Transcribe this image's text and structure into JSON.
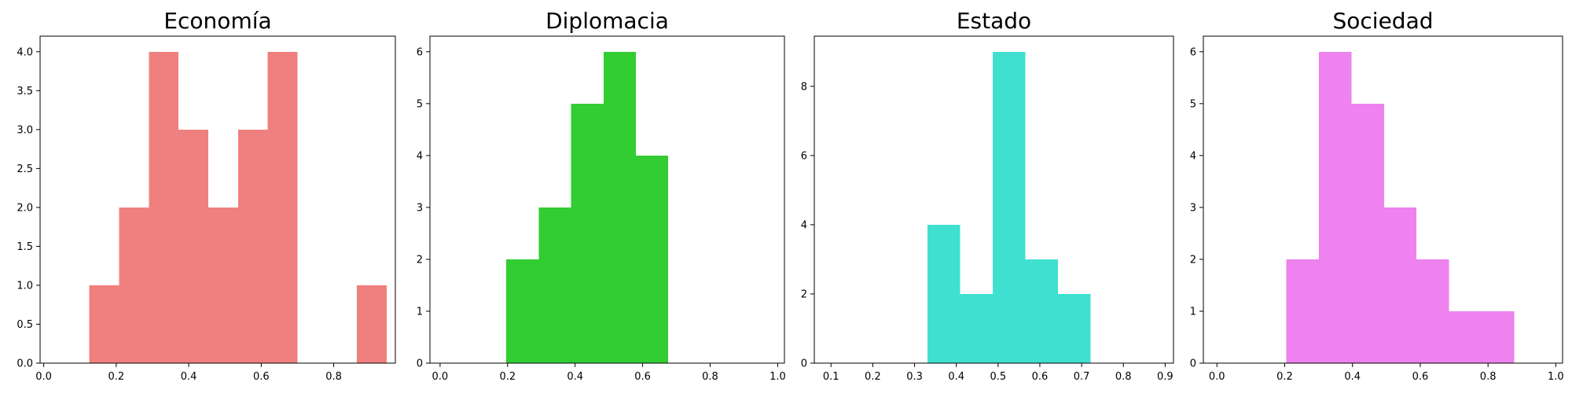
{
  "chart_data": [
    {
      "type": "bar",
      "title": "Economía",
      "color": "#f08080",
      "bins": [
        [
          0.126,
          0.208
        ],
        [
          0.208,
          0.29
        ],
        [
          0.29,
          0.372
        ],
        [
          0.372,
          0.454
        ],
        [
          0.454,
          0.536
        ],
        [
          0.536,
          0.618
        ],
        [
          0.618,
          0.7
        ],
        [
          0.7,
          0.782
        ],
        [
          0.782,
          0.864
        ],
        [
          0.864,
          0.946
        ]
      ],
      "values": [
        1,
        2,
        4,
        3,
        2,
        3,
        4,
        0,
        0,
        1
      ],
      "xlim": [
        -0.01,
        0.97
      ],
      "ylim": [
        0,
        4.2
      ],
      "xticks": [
        {
          "v": 0.0,
          "label": "0.0"
        },
        {
          "v": 0.2,
          "label": "0.2"
        },
        {
          "v": 0.4,
          "label": "0.4"
        },
        {
          "v": 0.6,
          "label": "0.6"
        },
        {
          "v": 0.8,
          "label": "0.8"
        }
      ],
      "yticks": [
        {
          "v": 0.0,
          "label": "0.0"
        },
        {
          "v": 0.5,
          "label": "0.5"
        },
        {
          "v": 1.0,
          "label": "1.0"
        },
        {
          "v": 1.5,
          "label": "1.5"
        },
        {
          "v": 2.0,
          "label": "2.0"
        },
        {
          "v": 2.5,
          "label": "2.5"
        },
        {
          "v": 3.0,
          "label": "3.0"
        },
        {
          "v": 3.5,
          "label": "3.5"
        },
        {
          "v": 4.0,
          "label": "4.0"
        }
      ]
    },
    {
      "type": "bar",
      "title": "Diplomacia",
      "color": "#32cd32",
      "bins": [
        [
          0.196,
          0.292
        ],
        [
          0.292,
          0.388
        ],
        [
          0.388,
          0.484
        ],
        [
          0.484,
          0.58
        ],
        [
          0.58,
          0.676
        ]
      ],
      "values": [
        2,
        3,
        5,
        6,
        4
      ],
      "xlim": [
        -0.03,
        1.02
      ],
      "ylim": [
        0,
        6.3
      ],
      "xticks": [
        {
          "v": 0.0,
          "label": "0.0"
        },
        {
          "v": 0.2,
          "label": "0.2"
        },
        {
          "v": 0.4,
          "label": "0.4"
        },
        {
          "v": 0.6,
          "label": "0.6"
        },
        {
          "v": 0.8,
          "label": "0.8"
        },
        {
          "v": 1.0,
          "label": "1.0"
        }
      ],
      "yticks": [
        {
          "v": 0,
          "label": "0"
        },
        {
          "v": 1,
          "label": "1"
        },
        {
          "v": 2,
          "label": "2"
        },
        {
          "v": 3,
          "label": "3"
        },
        {
          "v": 4,
          "label": "4"
        },
        {
          "v": 5,
          "label": "5"
        },
        {
          "v": 6,
          "label": "6"
        }
      ]
    },
    {
      "type": "bar",
      "title": "Estado",
      "color": "#40e0d0",
      "bins": [
        [
          0.331,
          0.409
        ],
        [
          0.409,
          0.487
        ],
        [
          0.487,
          0.565
        ],
        [
          0.565,
          0.643
        ],
        [
          0.643,
          0.721
        ]
      ],
      "values": [
        4,
        2,
        9,
        3,
        2
      ],
      "xlim": [
        0.06,
        0.92
      ],
      "ylim": [
        0,
        9.45
      ],
      "xticks": [
        {
          "v": 0.1,
          "label": "0.1"
        },
        {
          "v": 0.2,
          "label": "0.2"
        },
        {
          "v": 0.3,
          "label": "0.3"
        },
        {
          "v": 0.4,
          "label": "0.4"
        },
        {
          "v": 0.5,
          "label": "0.5"
        },
        {
          "v": 0.6,
          "label": "0.6"
        },
        {
          "v": 0.7,
          "label": "0.7"
        },
        {
          "v": 0.8,
          "label": "0.8"
        },
        {
          "v": 0.9,
          "label": "0.9"
        }
      ],
      "yticks": [
        {
          "v": 0,
          "label": "0"
        },
        {
          "v": 2,
          "label": "2"
        },
        {
          "v": 4,
          "label": "4"
        },
        {
          "v": 6,
          "label": "6"
        },
        {
          "v": 8,
          "label": "8"
        }
      ]
    },
    {
      "type": "bar",
      "title": "Sociedad",
      "color": "#ee82ee",
      "bins": [
        [
          0.205,
          0.301
        ],
        [
          0.301,
          0.397
        ],
        [
          0.397,
          0.493
        ],
        [
          0.493,
          0.589
        ],
        [
          0.589,
          0.685
        ],
        [
          0.685,
          0.781
        ],
        [
          0.781,
          0.877
        ]
      ],
      "values": [
        2,
        6,
        5,
        3,
        2,
        1,
        1
      ],
      "xlim": [
        -0.04,
        1.02
      ],
      "ylim": [
        0,
        6.3
      ],
      "xticks": [
        {
          "v": 0.0,
          "label": "0.0"
        },
        {
          "v": 0.2,
          "label": "0.2"
        },
        {
          "v": 0.4,
          "label": "0.4"
        },
        {
          "v": 0.6,
          "label": "0.6"
        },
        {
          "v": 0.8,
          "label": "0.8"
        },
        {
          "v": 1.0,
          "label": "1.0"
        }
      ],
      "yticks": [
        {
          "v": 0,
          "label": "0"
        },
        {
          "v": 1,
          "label": "1"
        },
        {
          "v": 2,
          "label": "2"
        },
        {
          "v": 3,
          "label": "3"
        },
        {
          "v": 4,
          "label": "4"
        },
        {
          "v": 5,
          "label": "5"
        },
        {
          "v": 6,
          "label": "6"
        }
      ]
    }
  ]
}
